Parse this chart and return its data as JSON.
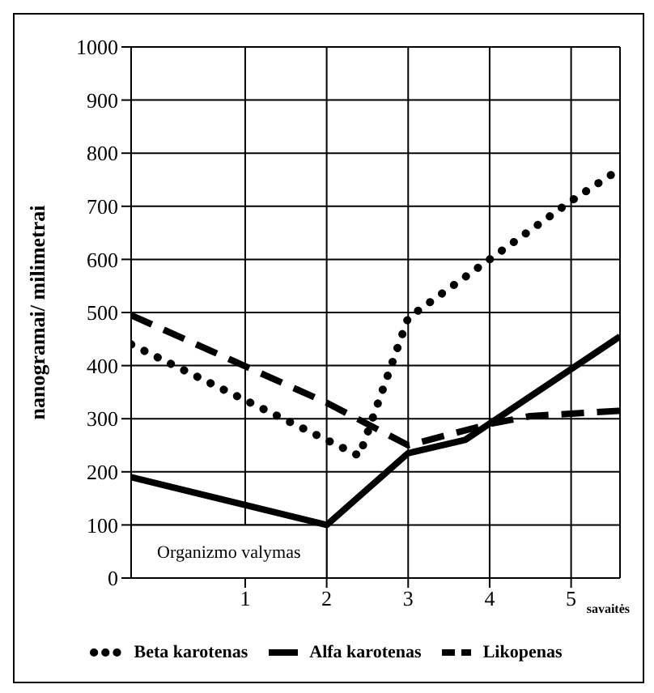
{
  "chart_data": {
    "type": "line",
    "ylabel": "nanogramai/ milimetrai",
    "xlabel": "savaitės",
    "xlim": [
      -0.4,
      5.6
    ],
    "xticks": [
      1,
      2,
      3,
      4,
      5
    ],
    "ylim": [
      0,
      1000
    ],
    "yticks": [
      0,
      100,
      200,
      300,
      400,
      500,
      600,
      700,
      800,
      900,
      1000
    ],
    "grid": true,
    "legend": "bottom",
    "marker": "none",
    "bands": [
      {
        "axis": "x",
        "from": -0.4,
        "to": 2,
        "label": "Organizmo valymas"
      }
    ],
    "series": [
      {
        "name": "Beta karotenas",
        "color": "#000000",
        "line_style": "dotted",
        "x": [
          -0.4,
          2.4,
          3,
          4,
          5,
          5.6
        ],
        "values": [
          440,
          230,
          490,
          600,
          710,
          770
        ]
      },
      {
        "name": "Alfa karotenas",
        "color": "#000000",
        "line_style": "solid",
        "x": [
          -0.4,
          2,
          3,
          3.7,
          5.6
        ],
        "values": [
          190,
          100,
          235,
          260,
          455
        ]
      },
      {
        "name": "Likopenas",
        "color": "#000000",
        "line_style": "dashed",
        "x": [
          -0.4,
          2,
          3,
          4,
          4.5,
          5.6
        ],
        "values": [
          495,
          330,
          250,
          290,
          305,
          315
        ]
      }
    ]
  }
}
